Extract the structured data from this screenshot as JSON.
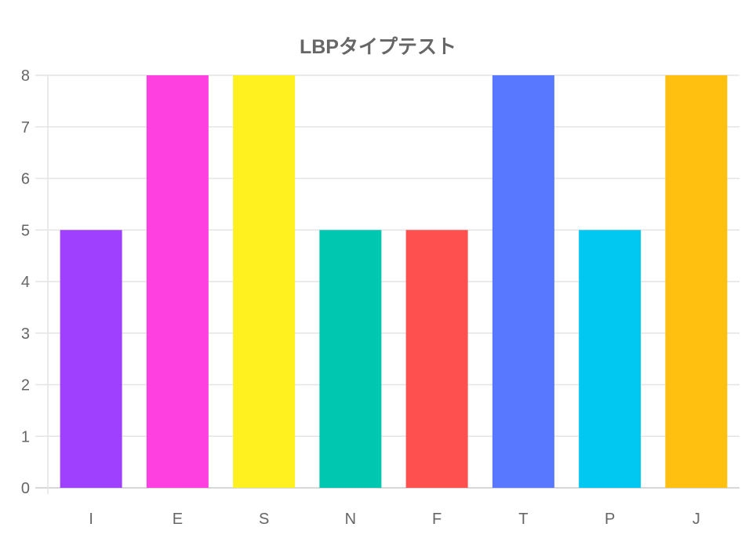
{
  "chart_data": {
    "type": "bar",
    "title": "LBPタイプテスト",
    "categories": [
      "I",
      "E",
      "S",
      "N",
      "F",
      "T",
      "P",
      "J"
    ],
    "values": [
      5,
      8,
      8,
      5,
      5,
      8,
      5,
      8
    ],
    "colors": [
      "#a040ff",
      "#ff40e0",
      "#fff020",
      "#00c8b0",
      "#ff5050",
      "#5878ff",
      "#00c8f0",
      "#ffc010"
    ],
    "ylim": [
      0,
      8
    ],
    "yticks": [
      "0",
      "1",
      "2",
      "3",
      "4",
      "5",
      "6",
      "7",
      "8"
    ],
    "grid": true,
    "legend": "none"
  }
}
